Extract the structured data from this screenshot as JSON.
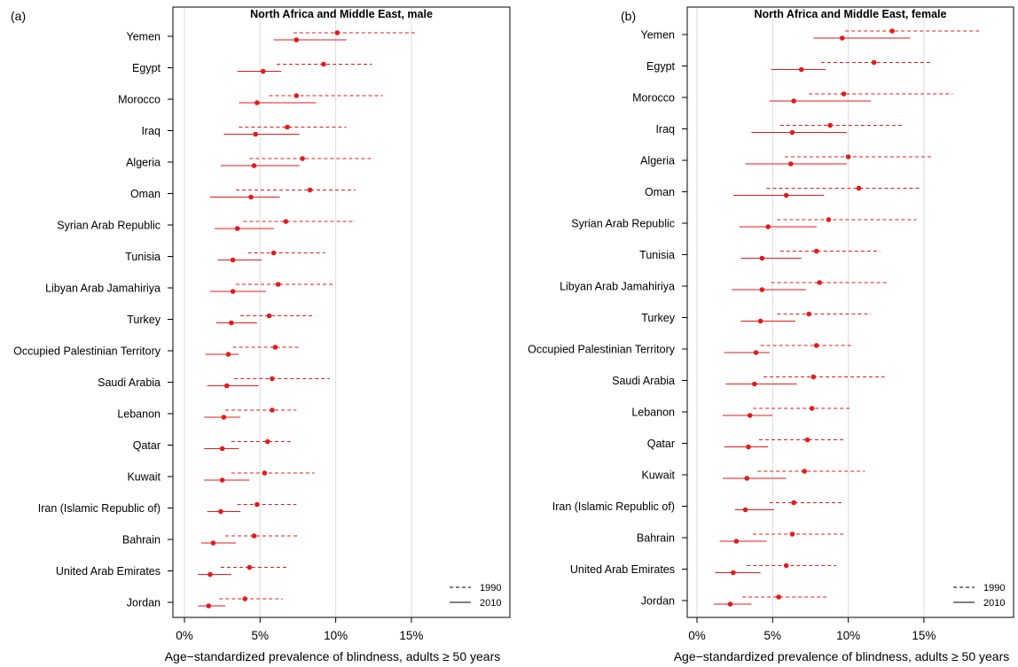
{
  "chart_data": [
    {
      "type": "forest",
      "panel_label": "(a)",
      "title": "North Africa and Middle East, male",
      "xlabel": "Age−standardized prevalence of blindness, adults ≥ 50 years",
      "xlim": [
        0,
        20
      ],
      "xticks": [
        0,
        5,
        10,
        15
      ],
      "xtick_labels": [
        "0%",
        "5%",
        "10%",
        "15%"
      ],
      "grid": true,
      "legend_position": "bottom-right",
      "categories": [
        "Yemen",
        "Egypt",
        "Morocco",
        "Iraq",
        "Algeria",
        "Oman",
        "Syrian Arab Republic",
        "Tunisia",
        "Libyan Arab Jamahiriya",
        "Turkey",
        "Occupied Palestinian Territory",
        "Saudi Arabia",
        "Lebanon",
        "Qatar",
        "Kuwait",
        "Iran (Islamic Republic of)",
        "Bahrain",
        "United Arab Emirates",
        "Jordan"
      ],
      "series": [
        {
          "name": "1990",
          "line": "dashed",
          "color": "#e41a1c",
          "values": [
            10.1,
            9.2,
            7.4,
            6.8,
            7.8,
            8.3,
            6.7,
            5.9,
            6.2,
            5.6,
            6.0,
            5.8,
            5.8,
            5.5,
            5.3,
            4.8,
            4.6,
            4.3,
            4.0
          ],
          "lower": [
            7.2,
            6.1,
            5.6,
            3.6,
            4.3,
            3.4,
            3.9,
            4.2,
            3.4,
            3.7,
            3.2,
            3.3,
            2.7,
            3.1,
            3.1,
            3.5,
            2.7,
            2.4,
            2.3
          ],
          "upper": [
            15.4,
            12.4,
            13.1,
            10.7,
            12.4,
            11.3,
            11.3,
            9.3,
            9.8,
            8.6,
            7.7,
            9.6,
            7.4,
            7.2,
            8.6,
            7.4,
            7.6,
            6.9,
            6.5
          ]
        },
        {
          "name": "2010",
          "line": "solid",
          "color": "#e41a1c",
          "values": [
            7.4,
            5.2,
            4.8,
            4.7,
            4.6,
            4.4,
            3.5,
            3.2,
            3.2,
            3.1,
            2.9,
            2.8,
            2.6,
            2.5,
            2.5,
            2.4,
            1.9,
            1.7,
            1.6
          ],
          "lower": [
            5.9,
            3.5,
            3.6,
            2.6,
            2.4,
            1.7,
            2.0,
            2.2,
            1.7,
            2.1,
            1.4,
            1.5,
            1.3,
            1.3,
            1.3,
            1.5,
            1.1,
            0.9,
            0.9
          ],
          "upper": [
            10.7,
            6.4,
            8.7,
            7.6,
            7.6,
            6.3,
            5.9,
            5.1,
            5.4,
            4.8,
            3.6,
            4.9,
            3.7,
            3.6,
            4.3,
            3.7,
            3.4,
            3.1,
            2.7
          ]
        }
      ]
    },
    {
      "type": "forest",
      "panel_label": "(b)",
      "title": "North Africa and Middle East, female",
      "xlabel": "Age−standardized prevalence of blindness, adults ≥ 50 years",
      "xlim": [
        0,
        20
      ],
      "xticks": [
        0,
        5,
        10,
        15
      ],
      "xtick_labels": [
        "0%",
        "5%",
        "10%",
        "15%"
      ],
      "grid": true,
      "legend_position": "bottom-right",
      "categories": [
        "Yemen",
        "Egypt",
        "Morocco",
        "Iraq",
        "Algeria",
        "Oman",
        "Syrian Arab Republic",
        "Tunisia",
        "Libyan Arab Jamahiriya",
        "Turkey",
        "Occupied Palestinian Territory",
        "Saudi Arabia",
        "Lebanon",
        "Qatar",
        "Kuwait",
        "Iran (Islamic Republic of)",
        "Bahrain",
        "United Arab Emirates",
        "Jordan"
      ],
      "series": [
        {
          "name": "1990",
          "line": "dashed",
          "color": "#e41a1c",
          "values": [
            12.9,
            11.7,
            9.7,
            8.8,
            10.0,
            10.7,
            8.7,
            7.9,
            8.1,
            7.4,
            7.9,
            7.7,
            7.6,
            7.3,
            7.1,
            6.4,
            6.3,
            5.9,
            5.4
          ],
          "lower": [
            9.8,
            8.2,
            7.4,
            5.5,
            5.8,
            4.6,
            5.3,
            5.5,
            4.9,
            5.3,
            4.2,
            4.4,
            3.7,
            4.1,
            4.0,
            4.8,
            3.7,
            3.3,
            3.0
          ],
          "upper": [
            18.7,
            15.6,
            16.9,
            13.6,
            15.6,
            14.7,
            14.5,
            12.1,
            12.6,
            11.5,
            10.2,
            12.4,
            10.1,
            9.7,
            11.1,
            9.7,
            9.7,
            9.2,
            8.7
          ]
        },
        {
          "name": "2010",
          "line": "solid",
          "color": "#e41a1c",
          "values": [
            9.6,
            6.9,
            6.4,
            6.3,
            6.2,
            5.9,
            4.7,
            4.3,
            4.3,
            4.2,
            3.9,
            3.8,
            3.5,
            3.4,
            3.3,
            3.2,
            2.6,
            2.4,
            2.2
          ],
          "lower": [
            7.7,
            4.9,
            4.8,
            3.6,
            3.2,
            2.4,
            2.8,
            2.9,
            2.3,
            2.9,
            1.8,
            1.9,
            1.7,
            1.8,
            1.7,
            2.5,
            1.5,
            1.2,
            1.1
          ],
          "upper": [
            14.1,
            8.5,
            11.5,
            9.9,
            9.9,
            8.4,
            7.9,
            6.9,
            7.2,
            6.5,
            4.8,
            6.6,
            5.0,
            4.7,
            5.9,
            5.1,
            4.6,
            4.2,
            3.6
          ]
        }
      ]
    }
  ]
}
